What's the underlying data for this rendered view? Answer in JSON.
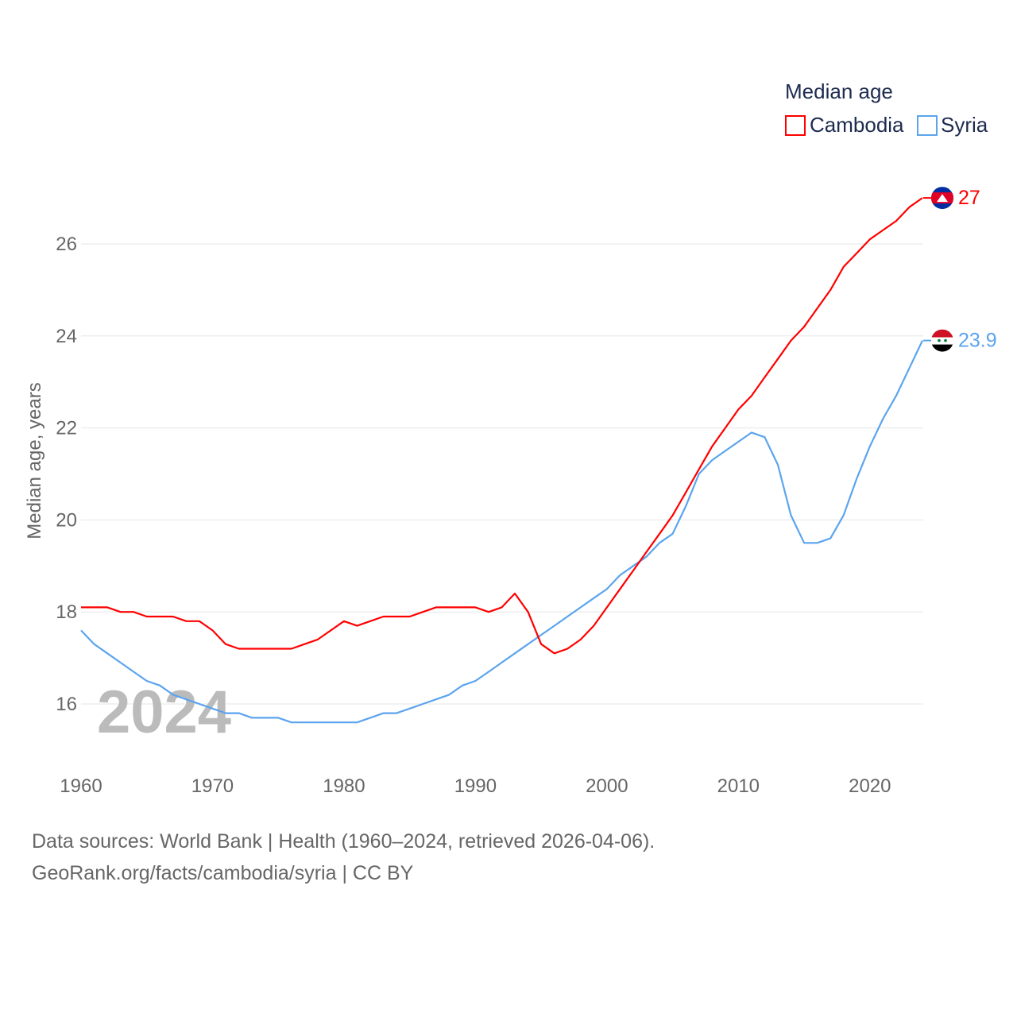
{
  "chart_data": {
    "type": "line",
    "title": "",
    "xlabel": "",
    "ylabel": "Median age, years",
    "xlim": [
      1960,
      2024
    ],
    "ylim": [
      15,
      27
    ],
    "x_ticks": [
      1960,
      1970,
      1980,
      1990,
      2000,
      2010,
      2020
    ],
    "y_ticks": [
      16,
      18,
      20,
      22,
      24,
      26
    ],
    "grid": true,
    "legend": {
      "title": "Median age",
      "placement": "top-right"
    },
    "year_watermark": "2024",
    "x": [
      1960,
      1961,
      1962,
      1963,
      1964,
      1965,
      1966,
      1967,
      1968,
      1969,
      1970,
      1971,
      1972,
      1973,
      1974,
      1975,
      1976,
      1977,
      1978,
      1979,
      1980,
      1981,
      1982,
      1983,
      1984,
      1985,
      1986,
      1987,
      1988,
      1989,
      1990,
      1991,
      1992,
      1993,
      1994,
      1995,
      1996,
      1997,
      1998,
      1999,
      2000,
      2001,
      2002,
      2003,
      2004,
      2005,
      2006,
      2007,
      2008,
      2009,
      2010,
      2011,
      2012,
      2013,
      2014,
      2015,
      2016,
      2017,
      2018,
      2019,
      2020,
      2021,
      2022,
      2023,
      2024
    ],
    "series": [
      {
        "name": "Cambodia",
        "color": "#ff0000",
        "end_label": "27",
        "values": [
          18.1,
          18.1,
          18.1,
          18.0,
          18.0,
          17.9,
          17.9,
          17.9,
          17.8,
          17.8,
          17.6,
          17.3,
          17.2,
          17.2,
          17.2,
          17.2,
          17.2,
          17.3,
          17.4,
          17.6,
          17.8,
          17.7,
          17.8,
          17.9,
          17.9,
          17.9,
          18.0,
          18.1,
          18.1,
          18.1,
          18.1,
          18.0,
          18.1,
          18.4,
          18.0,
          17.3,
          17.1,
          17.2,
          17.4,
          17.7,
          18.1,
          18.5,
          18.9,
          19.3,
          19.7,
          20.1,
          20.6,
          21.1,
          21.6,
          22.0,
          22.4,
          22.7,
          23.1,
          23.5,
          23.9,
          24.2,
          24.6,
          25.0,
          25.5,
          25.8,
          26.1,
          26.3,
          26.5,
          26.8,
          27.0
        ]
      },
      {
        "name": "Syria",
        "color": "#5ba4ee",
        "end_label": "23.9",
        "values": [
          17.6,
          17.3,
          17.1,
          16.9,
          16.7,
          16.5,
          16.4,
          16.2,
          16.1,
          16.0,
          15.9,
          15.8,
          15.8,
          15.7,
          15.7,
          15.7,
          15.6,
          15.6,
          15.6,
          15.6,
          15.6,
          15.6,
          15.7,
          15.8,
          15.8,
          15.9,
          16.0,
          16.1,
          16.2,
          16.4,
          16.5,
          16.7,
          16.9,
          17.1,
          17.3,
          17.5,
          17.7,
          17.9,
          18.1,
          18.3,
          18.5,
          18.8,
          19.0,
          19.2,
          19.5,
          19.7,
          20.3,
          21.0,
          21.3,
          21.5,
          21.7,
          21.9,
          21.8,
          21.2,
          20.1,
          19.5,
          19.5,
          19.6,
          20.1,
          20.9,
          21.6,
          22.2,
          22.7,
          23.3,
          23.9
        ]
      }
    ]
  },
  "footer": {
    "line1": "Data sources: World Bank | Health (1960–2024, retrieved 2026-04-06).",
    "line2": "GeoRank.org/facts/cambodia/syria | CC BY"
  }
}
